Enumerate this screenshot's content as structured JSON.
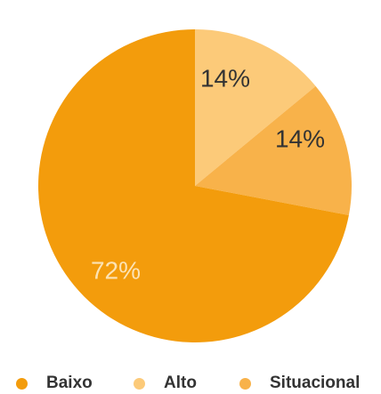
{
  "chart_data": {
    "type": "pie",
    "slices": [
      {
        "label": "Baixo",
        "value": 72,
        "value_label": "72%",
        "color": "#F39C0C"
      },
      {
        "label": "Alto",
        "value": 14,
        "value_label": "14%",
        "color": "#FCCA79"
      },
      {
        "label": "Situacional",
        "value": 14,
        "value_label": "14%",
        "color": "#F8B24A"
      }
    ],
    "label_colors": {
      "on_light": "#333333",
      "on_dark": "#FCE3B5"
    },
    "legend_placement": "bottom"
  }
}
